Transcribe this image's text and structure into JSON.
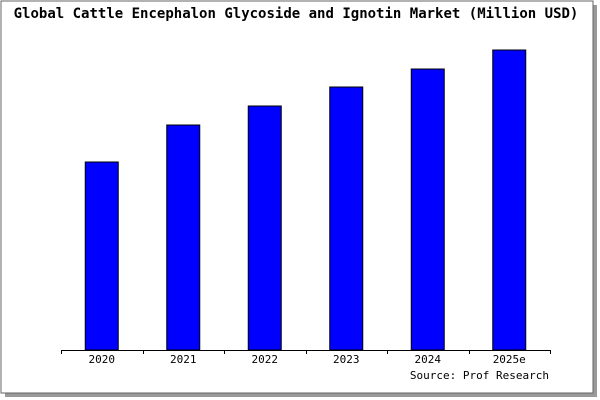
{
  "chart_data": {
    "type": "bar",
    "title": "Global Cattle Encephalon Glycoside and Ignotin Market (Million USD)",
    "categories": [
      "2020",
      "2021",
      "2022",
      "2023",
      "2024",
      "2025e"
    ],
    "values": [
      188,
      225,
      244,
      263,
      281,
      300
    ],
    "color": "#0000ff",
    "source": "Source: Prof Research"
  }
}
